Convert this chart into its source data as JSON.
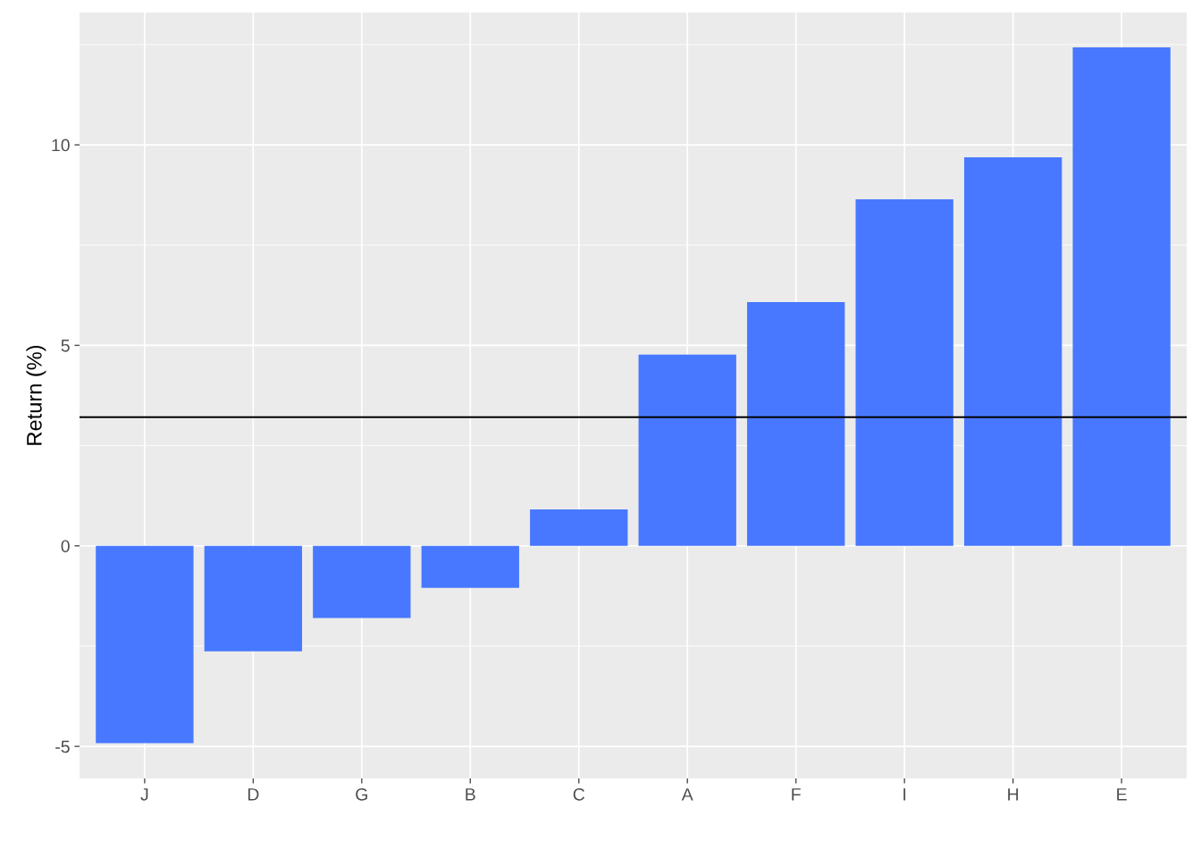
{
  "chart_data": {
    "type": "bar",
    "ylabel": "Return (%)",
    "categories": [
      "J",
      "D",
      "G",
      "B",
      "C",
      "A",
      "F",
      "I",
      "H",
      "E"
    ],
    "values": [
      -4.92,
      -2.63,
      -1.8,
      -1.05,
      0.91,
      4.77,
      6.08,
      8.64,
      9.69,
      12.43
    ],
    "color": "#4878ff",
    "ylim": [
      -5.8,
      13.3
    ],
    "yticks": [
      -5,
      0,
      5,
      10
    ],
    "grid": true,
    "ref_lines": [
      {
        "axis": "y",
        "value": 3.21,
        "color": "#000000"
      }
    ]
  }
}
